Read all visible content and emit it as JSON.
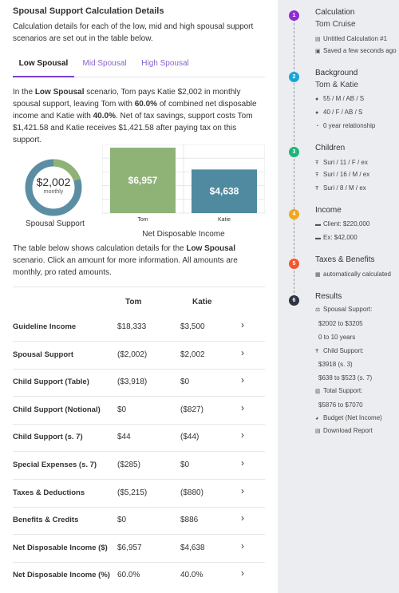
{
  "page": {
    "title": "Spousal Support Calculation Details",
    "description": "Calculation details for each of the low, mid and high spousal support scenarios are set out in the table below."
  },
  "tabs": [
    {
      "label": "Low Spousal",
      "active": true
    },
    {
      "label": "Mid Spousal",
      "active": false
    },
    {
      "label": "High Spousal",
      "active": false
    }
  ],
  "summary": {
    "p1": "In the ",
    "scenario": "Low Spousal",
    "p2": " scenario, Tom pays Katie $2,002 in monthly spousal support, leaving Tom with ",
    "tom_pct": "60.0%",
    "p3": " of combined net disposable income and Katie with ",
    "katie_pct": "40.0%",
    "p4": ".  Net of tax savings, support costs Tom $1,421.58 and  Katie receives $1,421.58 after paying tax on this support."
  },
  "donut": {
    "value": "$2,002",
    "sub": "monthly",
    "label": "Spousal Support",
    "fraction_highlight": 0.2,
    "color_main": "#5b8ea3",
    "color_highlight": "#8fb377"
  },
  "chart_data": {
    "type": "bar",
    "categories": [
      "Tom",
      "Katie"
    ],
    "values": [
      6957,
      4638
    ],
    "data_labels": [
      "$6,957",
      "$4,638"
    ],
    "colors": [
      "#8fb377",
      "#4f8aa0"
    ],
    "xlabel": "Net Disposable Income",
    "ylim": [
      0,
      7300
    ],
    "grid": true
  },
  "table_intro": {
    "p1": "The table below shows calculation details for the ",
    "scenario": "Low Spousal",
    "p2": " scenario. Click an amount for more information. All amounts are monthly, pro rated amounts."
  },
  "table": {
    "headers": [
      "Tom",
      "Katie"
    ],
    "rows": [
      {
        "label": "Guideline Income",
        "tom": "$18,333",
        "katie": "$3,500",
        "chev": "›"
      },
      {
        "label": "Spousal Support",
        "tom": "($2,002)",
        "katie": "$2,002",
        "chev": "›"
      },
      {
        "label": "Child Support (Table)",
        "tom": "($3,918)",
        "katie": "$0",
        "chev": "›"
      },
      {
        "label": "Child Support (Notional)",
        "tom": "$0",
        "katie": "($827)",
        "chev": "›"
      },
      {
        "label": "Child Support (s. 7)",
        "tom": "$44",
        "katie": "($44)",
        "chev": "›"
      },
      {
        "label": "Special Expenses (s. 7)",
        "tom": "($285)",
        "katie": "$0",
        "chev": "›"
      },
      {
        "label": "Taxes & Deductions",
        "tom": "($5,215)",
        "katie": "($880)",
        "chev": "›"
      },
      {
        "label": "Benefits & Credits",
        "tom": "$0",
        "katie": "$886",
        "chev": "›"
      },
      {
        "label": "Net Disposable Income ($)",
        "tom": "$6,957",
        "katie": "$4,638",
        "chev": "›"
      },
      {
        "label": "Net Disposable Income (%)",
        "tom": "60.0%",
        "katie": "40.0%",
        "chev": "›"
      }
    ]
  },
  "sidebar": {
    "steps": [
      {
        "num": "1",
        "color": "#8e2bd6",
        "title": "Calculation",
        "sub": "Tom Cruise",
        "items": [
          {
            "icon": "▤",
            "text": "Untitled Calculation #1"
          },
          {
            "icon": "▣",
            "text": "Saved a few seconds ago"
          }
        ]
      },
      {
        "num": "2",
        "color": "#1aa5d6",
        "title": "Background",
        "sub": "Tom & Katie",
        "items": [
          {
            "icon": "●",
            "text": "55 / M / AB / S"
          },
          {
            "icon": "●",
            "text": "40 / F / AB / S"
          },
          {
            "icon": "◔",
            "text": "0 year relationship"
          }
        ]
      },
      {
        "num": "3",
        "color": "#1fb57a",
        "title": "Children",
        "sub": "",
        "items": [
          {
            "icon": "Ŧ",
            "text": "Suri / 11 / F / ex"
          },
          {
            "icon": "Ŧ",
            "text": "Suri / 16 / M / ex"
          },
          {
            "icon": "Ŧ",
            "text": "Suri / 8 / M / ex"
          }
        ]
      },
      {
        "num": "4",
        "color": "#f2a71b",
        "title": "Income",
        "sub": "",
        "items": [
          {
            "icon": "▬",
            "text": "Client: $220,000"
          },
          {
            "icon": "▬",
            "text": "Ex: $42,000"
          }
        ]
      },
      {
        "num": "5",
        "color": "#f05a2e",
        "title": "Taxes & Benefits",
        "sub": "",
        "items": [
          {
            "icon": "▦",
            "text": "automatically calculated"
          }
        ]
      },
      {
        "num": "6",
        "color": "#2d3340",
        "title": "Results",
        "sub": "",
        "items": []
      }
    ],
    "results": [
      {
        "icon": "⚖",
        "text": "Spousal Support:",
        "sub": [
          "$2002 to $3205",
          "0 to 10 years"
        ]
      },
      {
        "icon": "Ŧ",
        "text": "Child Support:",
        "sub": [
          "$3918 (s. 3)",
          "$638 to $523 (s. 7)"
        ]
      },
      {
        "icon": "▥",
        "text": "Total Support:",
        "sub": [
          "$5876 to $7070"
        ]
      },
      {
        "icon": "◕",
        "text": "Budget (Net Income)",
        "sub": []
      },
      {
        "icon": "▤",
        "text": "Download Report",
        "sub": []
      }
    ]
  }
}
